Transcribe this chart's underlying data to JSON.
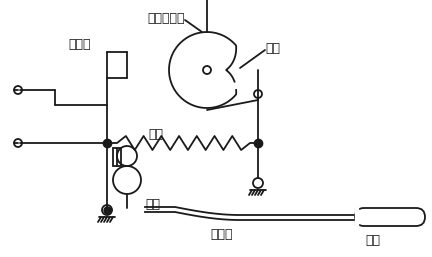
{
  "bg_color": "#ffffff",
  "line_color": "#1a1a1a",
  "labels": {
    "dianjiedian": "电接点",
    "tiaowenxuanniuzhou": "调温旋钮轴",
    "ao_lun": "凹轮",
    "tan_huang": "弹簧",
    "mo_he": "膜盒",
    "mao_xi_guan": "毛细管",
    "wen_bao": "温包"
  },
  "figsize": [
    4.32,
    2.57
  ],
  "dpi": 100
}
